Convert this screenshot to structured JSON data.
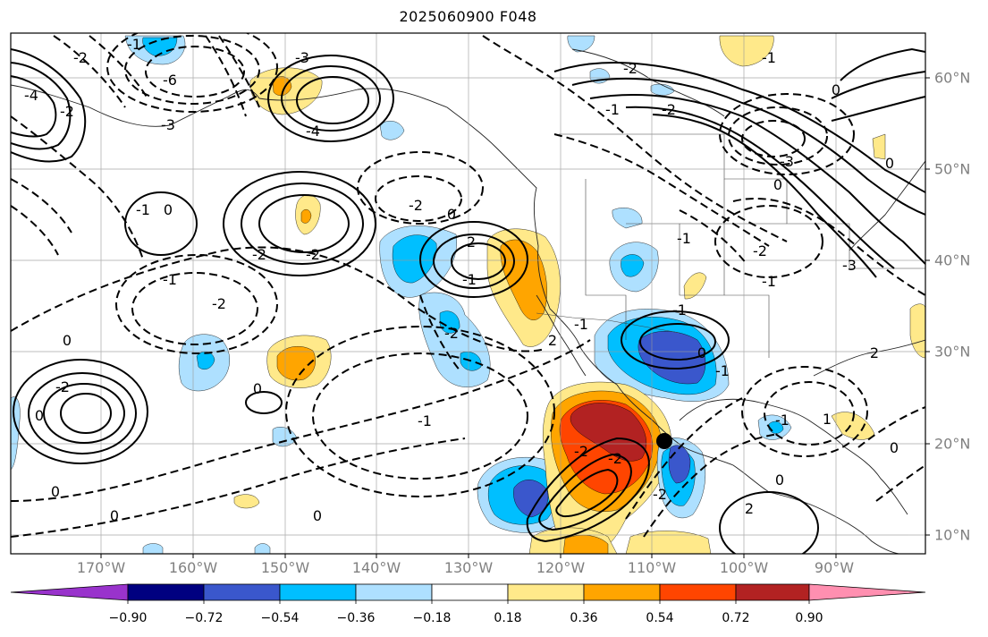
{
  "title": "2025060900 F048",
  "map": {
    "lon_labels": [
      "170°W",
      "160°W",
      "150°W",
      "140°W",
      "130°W",
      "120°W",
      "110°W",
      "100°W",
      "90°W"
    ],
    "lat_labels": [
      "60°N",
      "50°N",
      "40°N",
      "30°N",
      "20°N",
      "10°N"
    ],
    "contour_labels": [
      "-1",
      "-2",
      "-6",
      "-4",
      "-2",
      "-3",
      "-3",
      "-4",
      "-1",
      "-2",
      "-2",
      "-1",
      "0",
      "-3",
      "0",
      "0",
      "0",
      "-2",
      "0",
      "-1",
      "2",
      "-2",
      "-2",
      "-1",
      "-1",
      "-2",
      "0",
      "0",
      "-1",
      "-2",
      "-1",
      "0",
      "-1",
      "-1",
      "2",
      "-2",
      "-3",
      "-2",
      "2",
      "0",
      "-1",
      "-1",
      "1",
      "0",
      "0",
      "0",
      "-2",
      "-2",
      "0",
      "2",
      "-2",
      "-1",
      "0"
    ],
    "marker": "black-dot",
    "fill_colors": {
      "neg_0.90": "#9933cc",
      "neg_0.72": "#000080",
      "neg_0.54": "#3a57cc",
      "neg_0.36": "#00bfff",
      "neg_0.18": "#aee0ff",
      "pos_0.18": "#ffe98a",
      "pos_0.36": "#ffa500",
      "pos_0.54": "#ff4500",
      "pos_0.72": "#b22222",
      "pos_0.90": "#ff8fb0"
    }
  },
  "colorbar": {
    "ticks": [
      "−0.90",
      "−0.72",
      "−0.54",
      "−0.36",
      "−0.18",
      "0.18",
      "0.36",
      "0.54",
      "0.72",
      "0.90"
    ],
    "colors": [
      "#9933cc",
      "#000080",
      "#3a57cc",
      "#00bfff",
      "#aee0ff",
      "#ffffff",
      "#ffe98a",
      "#ffa500",
      "#ff4500",
      "#b22222",
      "#ff8fb0",
      "#ff8fb0"
    ]
  }
}
